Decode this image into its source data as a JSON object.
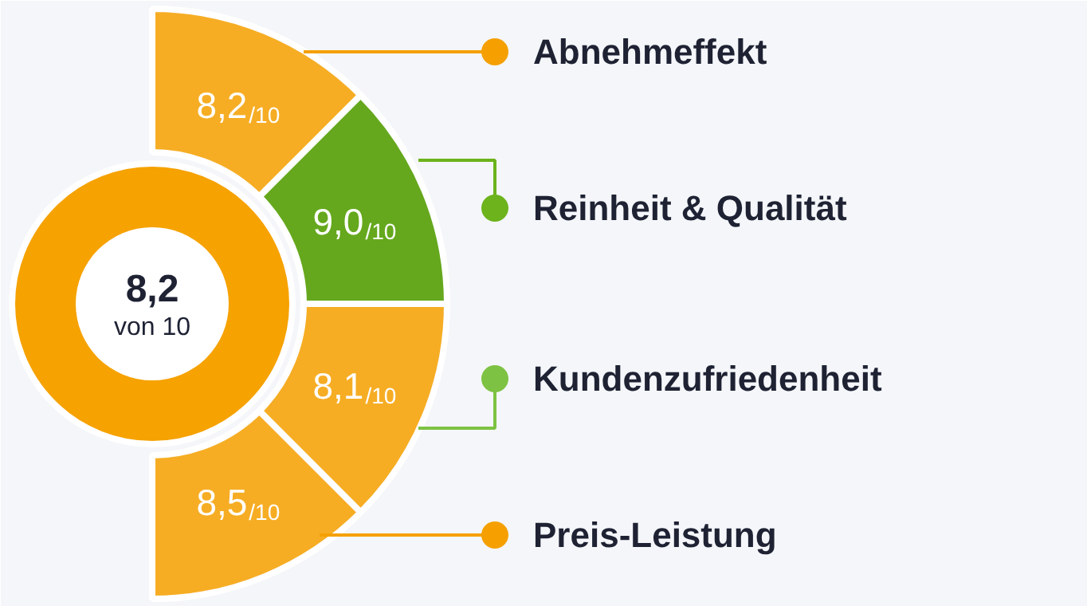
{
  "chart_data": {
    "type": "other",
    "categories": [
      "Abnehmeffekt",
      "Reinheit & Qualität",
      "Kundenzufriedenheit",
      "Preis-Leistung"
    ],
    "values": [
      8.2,
      9.0,
      8.1,
      8.5
    ],
    "value_labels": [
      "8,2$_{/10}$",
      "9,0$_{/10}$",
      "8,1$_{/10}$",
      "8,5$_{/10}$"
    ],
    "colors": [
      "#f6ad24",
      "#65a81d",
      "#f6ad24",
      "#f6ad24"
    ],
    "annotations": [
      "8,2",
      "von 10"
    ]
  }
}
